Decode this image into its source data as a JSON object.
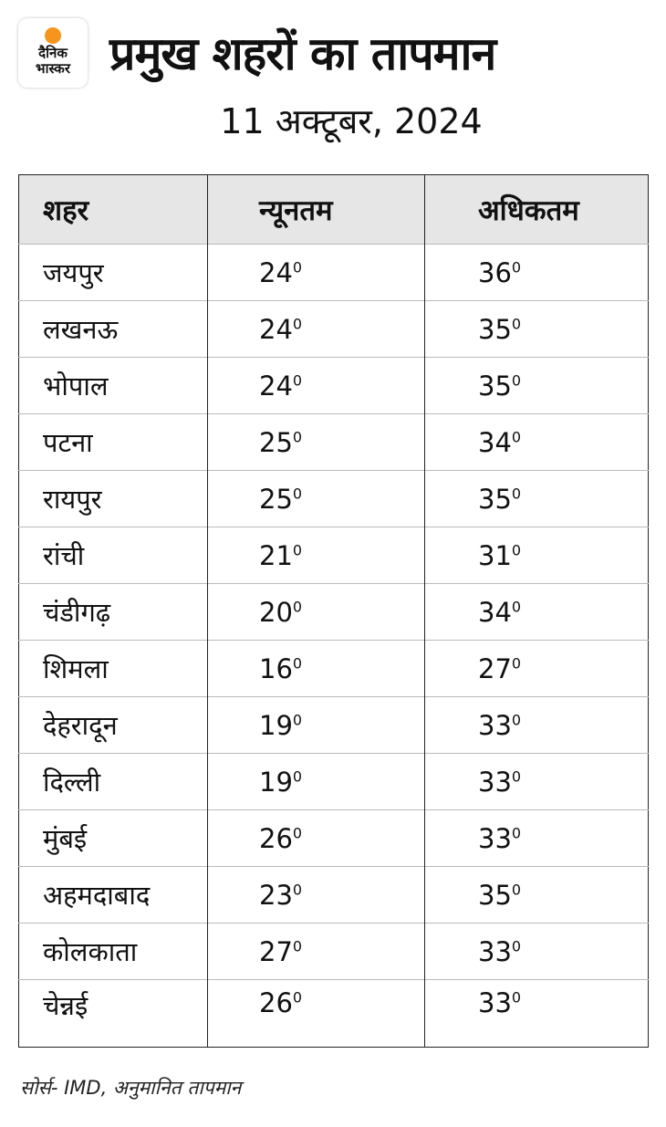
{
  "logo": {
    "line1": "दैनिक",
    "line2": "भास्कर",
    "sun_color": "#f7941d"
  },
  "title": "प्रमुख शहरों का तापमान",
  "date": "11 अक्टूबर, 2024",
  "table": {
    "headers": [
      "शहर",
      "न्यूनतम",
      "अधिकतम"
    ],
    "degree_mark": "0",
    "rows": [
      {
        "city": "जयपुर",
        "min": "24",
        "max": "36"
      },
      {
        "city": "लखनऊ",
        "min": "24",
        "max": "35"
      },
      {
        "city": "भोपाल",
        "min": "24",
        "max": "35"
      },
      {
        "city": "पटना",
        "min": "25",
        "max": "34"
      },
      {
        "city": "रायपुर",
        "min": "25",
        "max": "35"
      },
      {
        "city": "रांची",
        "min": "21",
        "max": "31"
      },
      {
        "city": "चंडीगढ़",
        "min": "20",
        "max": "34"
      },
      {
        "city": "शिमला",
        "min": "16",
        "max": "27"
      },
      {
        "city": "देहरादून",
        "min": "19",
        "max": "33"
      },
      {
        "city": "दिल्ली",
        "min": "19",
        "max": "33"
      },
      {
        "city": "मुंबई",
        "min": "26",
        "max": "33"
      },
      {
        "city": "अहमदाबाद",
        "min": "23",
        "max": "35"
      },
      {
        "city": "कोलकाता",
        "min": "27",
        "max": "33"
      },
      {
        "city": "चेन्नई",
        "min": "26",
        "max": "33"
      }
    ]
  },
  "source": "सोर्स- IMD, अनुमानित तापमान"
}
